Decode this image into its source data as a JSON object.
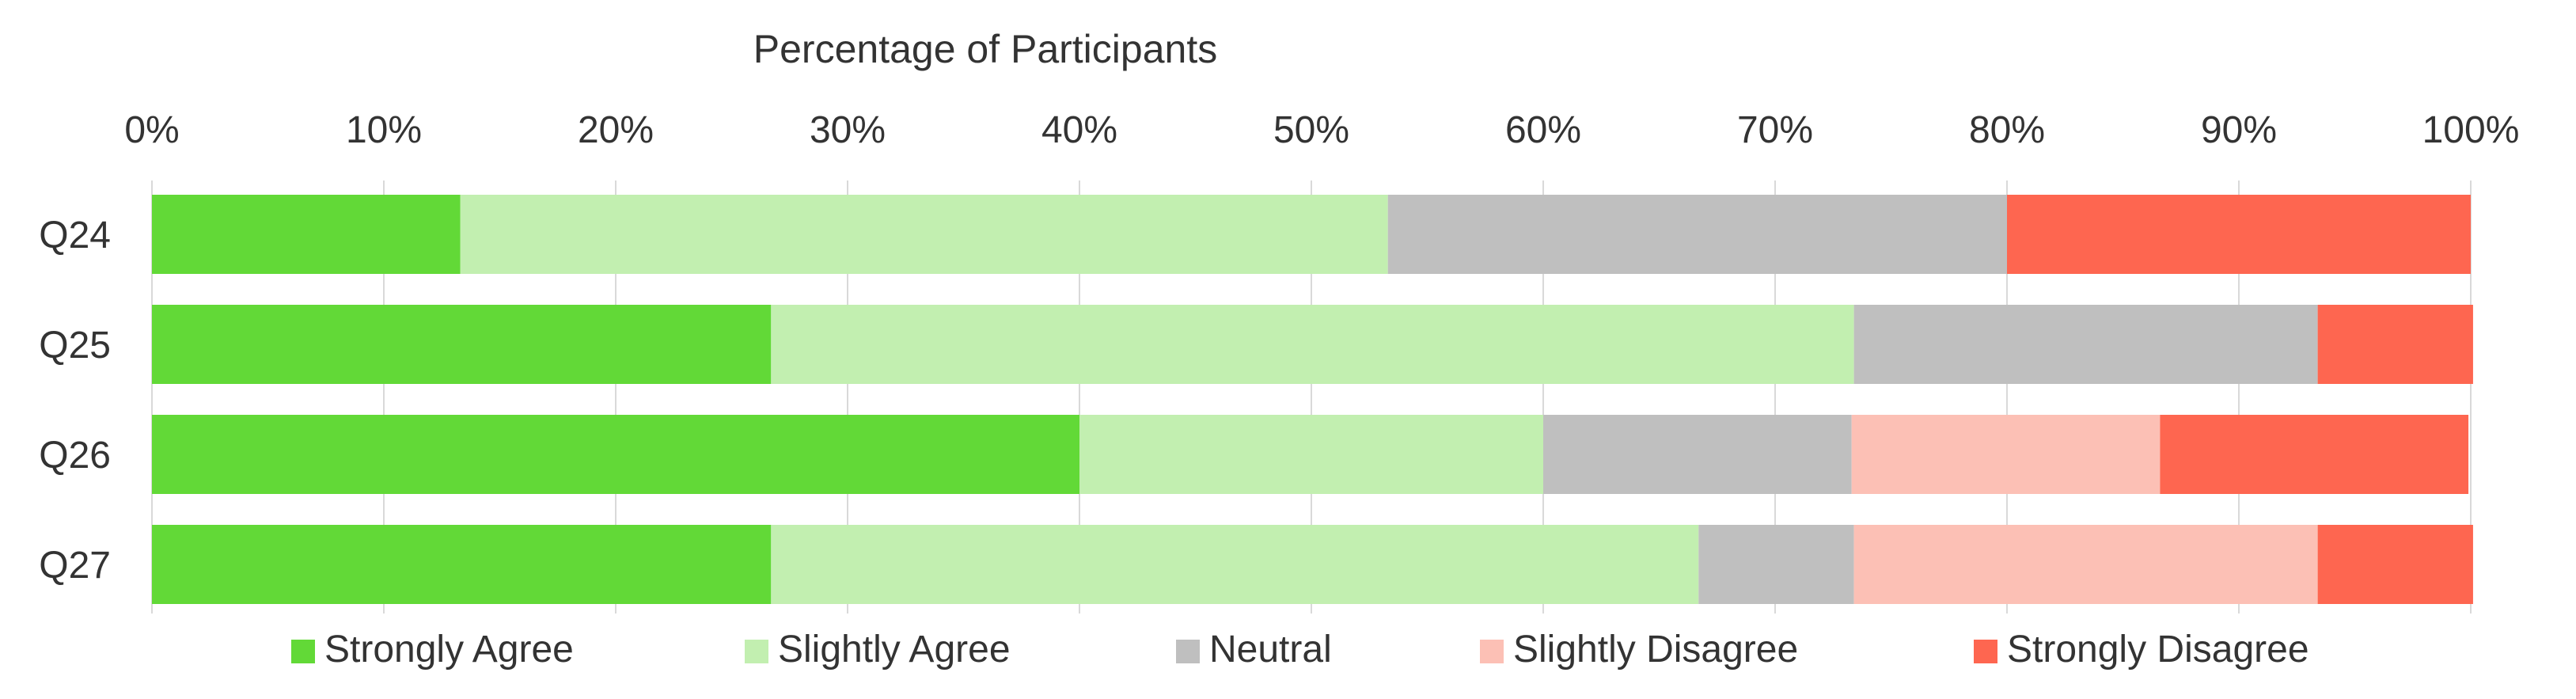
{
  "chart_data": {
    "type": "bar",
    "orientation": "horizontal",
    "stacked": true,
    "normalized": true,
    "xlabel": "Percentage of Participants",
    "xlim": [
      0,
      100
    ],
    "x_ticks": [
      "0%",
      "10%",
      "20%",
      "30%",
      "40%",
      "50%",
      "60%",
      "70%",
      "80%",
      "90%",
      "100%"
    ],
    "grid": true,
    "legend_position": "bottom",
    "categories": [
      "Q24",
      "Q25",
      "Q26",
      "Q27"
    ],
    "series": [
      {
        "name": "Strongly Agree",
        "color": "#62d937",
        "values": [
          13.3,
          26.7,
          40.0,
          26.7
        ]
      },
      {
        "name": "Slightly Agree",
        "color": "#c2efb0",
        "values": [
          40.0,
          46.7,
          20.0,
          40.0
        ]
      },
      {
        "name": "Neutral",
        "color": "#bfbfbf",
        "values": [
          26.7,
          20.0,
          13.3,
          6.7
        ]
      },
      {
        "name": "Slightly Disagree",
        "color": "#fcc0b5",
        "values": [
          0,
          0,
          13.3,
          20.0
        ]
      },
      {
        "name": "Strongly Disagree",
        "color": "#fe6650",
        "values": [
          20.0,
          6.7,
          13.3,
          6.7
        ]
      }
    ]
  }
}
